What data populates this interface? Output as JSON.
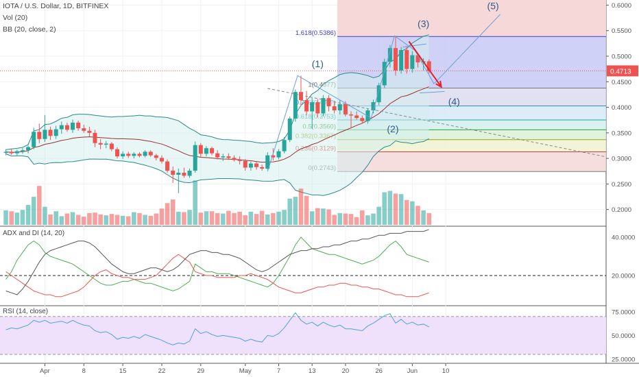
{
  "header": {
    "title": "IOTA / U.S. Dollar, 1D, BITFINEX",
    "vol": "Vol (20)",
    "bb": "BB (20, close, 2)"
  },
  "panes": {
    "adx_label": "ADX and DI (14, 20)",
    "rsi_label": "RSI (14, close)"
  },
  "colors": {
    "up": "#26a69a",
    "down": "#ef5350",
    "bb_band": "#2a8a8a",
    "bb_basis": "#9c2f2f",
    "wave": "#6a9fd8",
    "arrow": "#e0202a",
    "current_price_tag": "#ef5350",
    "adx": "#555555",
    "di_plus": "#4caf50",
    "di_minus": "#ef5350",
    "rsi": "#4aa3df",
    "rsi_zone": "#efe0fb"
  },
  "current_price": {
    "value": 0.4713,
    "label": "0.4713"
  },
  "price_axis": [
    "0.6000",
    "0.5500",
    "0.5000",
    "0.4500",
    "0.4000",
    "0.3500",
    "0.3000",
    "0.2500",
    "0.2000"
  ],
  "adx_axis": [
    "40.0000",
    "20.0000"
  ],
  "rsi_axis": [
    "75.0000",
    "50.0000",
    "25.0000"
  ],
  "time_axis": [
    "Apr",
    "8",
    "15",
    "22",
    "29",
    "May",
    "7",
    "13",
    "20",
    "26",
    "Jun",
    "10"
  ],
  "fib_levels": [
    {
      "ratio": 1.618,
      "price": 0.5386,
      "label": "1.618(0.5386)",
      "color": "#3f3fc8",
      "fill": "#c7c9f5"
    },
    {
      "ratio": 1,
      "price": 0.4377,
      "label": "1(0.4377)",
      "color": "#777777",
      "fill": "#dcdcef"
    },
    {
      "ratio": 0.786,
      "price": 0.4027,
      "label": "0.786(0.4027)",
      "color": "#2b8fd0",
      "fill": "#d6e9f7"
    },
    {
      "ratio": 0.618,
      "price": 0.3753,
      "label": "0.618(0.3753)",
      "color": "#1fa39a",
      "fill": "#d3f0ec"
    },
    {
      "ratio": 0.5,
      "price": 0.356,
      "label": "0.5(0.3560)",
      "color": "#2e9e3a",
      "fill": "#dbf1d6"
    },
    {
      "ratio": 0.382,
      "price": 0.3367,
      "label": "0.382(0.3367)",
      "color": "#9aa31f",
      "fill": "#eef2cf"
    },
    {
      "ratio": 0.236,
      "price": 0.3129,
      "label": "0.236(0.3129)",
      "color": "#d43c3c",
      "fill": "#f6d8d8"
    },
    {
      "ratio": 0,
      "price": 0.2743,
      "label": "0(0.2743)",
      "color": "#777777",
      "fill": "#f6d8d8"
    }
  ],
  "wave_labels": [
    {
      "label": "(1)",
      "day": 56,
      "price": 0.4785
    },
    {
      "label": "(2)",
      "day": 69.5,
      "price": 0.351
    },
    {
      "label": "(3)",
      "day": 75,
      "price": 0.557
    },
    {
      "label": "(4)",
      "day": 80.5,
      "price": 0.405
    },
    {
      "label": "(5)",
      "day": 87.5,
      "price": 0.592
    }
  ],
  "chart_data": {
    "type": "candlestick",
    "title": "IOTA / U.S. Dollar, 1D, BITFINEX",
    "start_date": "2019-03-25",
    "ylim": [
      0.17,
      0.61
    ],
    "candles": [
      {
        "o": 0.311,
        "h": 0.318,
        "l": 0.306,
        "c": 0.313
      },
      {
        "o": 0.313,
        "h": 0.319,
        "l": 0.307,
        "c": 0.31
      },
      {
        "o": 0.31,
        "h": 0.317,
        "l": 0.306,
        "c": 0.314
      },
      {
        "o": 0.314,
        "h": 0.32,
        "l": 0.309,
        "c": 0.316
      },
      {
        "o": 0.316,
        "h": 0.325,
        "l": 0.31,
        "c": 0.322
      },
      {
        "o": 0.322,
        "h": 0.36,
        "l": 0.318,
        "c": 0.352
      },
      {
        "o": 0.352,
        "h": 0.368,
        "l": 0.33,
        "c": 0.338
      },
      {
        "o": 0.338,
        "h": 0.385,
        "l": 0.332,
        "c": 0.356
      },
      {
        "o": 0.356,
        "h": 0.362,
        "l": 0.336,
        "c": 0.344
      },
      {
        "o": 0.344,
        "h": 0.364,
        "l": 0.338,
        "c": 0.357
      },
      {
        "o": 0.357,
        "h": 0.372,
        "l": 0.348,
        "c": 0.365
      },
      {
        "o": 0.365,
        "h": 0.37,
        "l": 0.352,
        "c": 0.356
      },
      {
        "o": 0.356,
        "h": 0.376,
        "l": 0.35,
        "c": 0.37
      },
      {
        "o": 0.37,
        "h": 0.374,
        "l": 0.354,
        "c": 0.359
      },
      {
        "o": 0.359,
        "h": 0.366,
        "l": 0.35,
        "c": 0.354
      },
      {
        "o": 0.354,
        "h": 0.362,
        "l": 0.343,
        "c": 0.35
      },
      {
        "o": 0.35,
        "h": 0.356,
        "l": 0.322,
        "c": 0.33
      },
      {
        "o": 0.33,
        "h": 0.338,
        "l": 0.318,
        "c": 0.327
      },
      {
        "o": 0.327,
        "h": 0.334,
        "l": 0.32,
        "c": 0.329
      },
      {
        "o": 0.329,
        "h": 0.332,
        "l": 0.314,
        "c": 0.318
      },
      {
        "o": 0.318,
        "h": 0.322,
        "l": 0.3,
        "c": 0.304
      },
      {
        "o": 0.304,
        "h": 0.314,
        "l": 0.299,
        "c": 0.309
      },
      {
        "o": 0.309,
        "h": 0.313,
        "l": 0.301,
        "c": 0.305
      },
      {
        "o": 0.305,
        "h": 0.312,
        "l": 0.3,
        "c": 0.309
      },
      {
        "o": 0.309,
        "h": 0.312,
        "l": 0.302,
        "c": 0.305
      },
      {
        "o": 0.305,
        "h": 0.316,
        "l": 0.302,
        "c": 0.313
      },
      {
        "o": 0.313,
        "h": 0.316,
        "l": 0.303,
        "c": 0.306
      },
      {
        "o": 0.306,
        "h": 0.309,
        "l": 0.296,
        "c": 0.301
      },
      {
        "o": 0.301,
        "h": 0.306,
        "l": 0.29,
        "c": 0.294
      },
      {
        "o": 0.294,
        "h": 0.298,
        "l": 0.272,
        "c": 0.276
      },
      {
        "o": 0.276,
        "h": 0.284,
        "l": 0.252,
        "c": 0.268
      },
      {
        "o": 0.268,
        "h": 0.28,
        "l": 0.232,
        "c": 0.272
      },
      {
        "o": 0.272,
        "h": 0.282,
        "l": 0.262,
        "c": 0.266
      },
      {
        "o": 0.266,
        "h": 0.28,
        "l": 0.262,
        "c": 0.276
      },
      {
        "o": 0.276,
        "h": 0.333,
        "l": 0.272,
        "c": 0.326
      },
      {
        "o": 0.326,
        "h": 0.33,
        "l": 0.302,
        "c": 0.309
      },
      {
        "o": 0.309,
        "h": 0.324,
        "l": 0.304,
        "c": 0.32
      },
      {
        "o": 0.32,
        "h": 0.323,
        "l": 0.306,
        "c": 0.31
      },
      {
        "o": 0.31,
        "h": 0.316,
        "l": 0.298,
        "c": 0.302
      },
      {
        "o": 0.302,
        "h": 0.309,
        "l": 0.295,
        "c": 0.304
      },
      {
        "o": 0.304,
        "h": 0.31,
        "l": 0.297,
        "c": 0.301
      },
      {
        "o": 0.301,
        "h": 0.306,
        "l": 0.294,
        "c": 0.297
      },
      {
        "o": 0.297,
        "h": 0.304,
        "l": 0.288,
        "c": 0.295
      },
      {
        "o": 0.295,
        "h": 0.299,
        "l": 0.276,
        "c": 0.282
      },
      {
        "o": 0.282,
        "h": 0.294,
        "l": 0.276,
        "c": 0.29
      },
      {
        "o": 0.29,
        "h": 0.294,
        "l": 0.278,
        "c": 0.283
      },
      {
        "o": 0.283,
        "h": 0.288,
        "l": 0.276,
        "c": 0.28
      },
      {
        "o": 0.28,
        "h": 0.312,
        "l": 0.278,
        "c": 0.306
      },
      {
        "o": 0.306,
        "h": 0.32,
        "l": 0.296,
        "c": 0.302
      },
      {
        "o": 0.302,
        "h": 0.318,
        "l": 0.298,
        "c": 0.314
      },
      {
        "o": 0.314,
        "h": 0.342,
        "l": 0.31,
        "c": 0.336
      },
      {
        "o": 0.336,
        "h": 0.382,
        "l": 0.332,
        "c": 0.378
      },
      {
        "o": 0.378,
        "h": 0.435,
        "l": 0.372,
        "c": 0.43
      },
      {
        "o": 0.43,
        "h": 0.462,
        "l": 0.404,
        "c": 0.414
      },
      {
        "o": 0.414,
        "h": 0.432,
        "l": 0.384,
        "c": 0.392
      },
      {
        "o": 0.392,
        "h": 0.418,
        "l": 0.358,
        "c": 0.41
      },
      {
        "o": 0.41,
        "h": 0.416,
        "l": 0.38,
        "c": 0.388
      },
      {
        "o": 0.388,
        "h": 0.424,
        "l": 0.382,
        "c": 0.418
      },
      {
        "o": 0.418,
        "h": 0.424,
        "l": 0.392,
        "c": 0.402
      },
      {
        "o": 0.402,
        "h": 0.412,
        "l": 0.388,
        "c": 0.394
      },
      {
        "o": 0.394,
        "h": 0.414,
        "l": 0.386,
        "c": 0.406
      },
      {
        "o": 0.406,
        "h": 0.412,
        "l": 0.382,
        "c": 0.386
      },
      {
        "o": 0.386,
        "h": 0.392,
        "l": 0.36,
        "c": 0.384
      },
      {
        "o": 0.384,
        "h": 0.392,
        "l": 0.376,
        "c": 0.379
      },
      {
        "o": 0.379,
        "h": 0.384,
        "l": 0.37,
        "c": 0.373
      },
      {
        "o": 0.373,
        "h": 0.398,
        "l": 0.368,
        "c": 0.394
      },
      {
        "o": 0.394,
        "h": 0.415,
        "l": 0.388,
        "c": 0.41
      },
      {
        "o": 0.41,
        "h": 0.448,
        "l": 0.404,
        "c": 0.443
      },
      {
        "o": 0.443,
        "h": 0.495,
        "l": 0.438,
        "c": 0.489
      },
      {
        "o": 0.489,
        "h": 0.522,
        "l": 0.478,
        "c": 0.516
      },
      {
        "o": 0.516,
        "h": 0.54,
        "l": 0.462,
        "c": 0.472
      },
      {
        "o": 0.472,
        "h": 0.518,
        "l": 0.466,
        "c": 0.512
      },
      {
        "o": 0.512,
        "h": 0.518,
        "l": 0.466,
        "c": 0.475
      },
      {
        "o": 0.475,
        "h": 0.51,
        "l": 0.468,
        "c": 0.502
      },
      {
        "o": 0.502,
        "h": 0.506,
        "l": 0.478,
        "c": 0.488
      },
      {
        "o": 0.488,
        "h": 0.496,
        "l": 0.472,
        "c": 0.49
      },
      {
        "o": 0.49,
        "h": 0.494,
        "l": 0.466,
        "c": 0.471
      }
    ],
    "volume": [
      32,
      30,
      27,
      33,
      44,
      62,
      86,
      40,
      23,
      30,
      19,
      25,
      28,
      22,
      18,
      26,
      27,
      23,
      21,
      24,
      22,
      20,
      19,
      28,
      26,
      22,
      20,
      25,
      36,
      48,
      56,
      29,
      28,
      33,
      98,
      27,
      30,
      30,
      26,
      25,
      31,
      26,
      29,
      21,
      29,
      24,
      31,
      23,
      26,
      29,
      33,
      58,
      62,
      80,
      64,
      30,
      37,
      36,
      34,
      22,
      26,
      25,
      24,
      17,
      32,
      21,
      25,
      40,
      72,
      75,
      69,
      68,
      55,
      52,
      42,
      32,
      26
    ],
    "vol_max": 100,
    "adx": {
      "ylim": [
        5,
        45
      ],
      "adx": [
        12,
        11,
        10,
        13,
        17,
        22,
        27,
        31,
        33,
        34,
        35,
        36,
        37,
        38,
        38,
        37,
        35,
        32,
        29,
        26,
        24,
        22,
        21,
        21,
        22,
        23,
        24,
        24,
        23,
        22,
        23,
        25,
        28,
        31,
        32,
        33,
        33,
        32,
        32,
        31,
        31,
        30,
        29,
        27,
        25,
        23,
        22,
        23,
        25,
        27,
        29,
        31,
        32,
        33,
        33,
        34,
        34,
        35,
        35,
        36,
        36,
        37,
        38,
        38,
        39,
        39,
        40,
        41,
        41,
        42,
        42,
        42,
        43,
        43,
        43,
        43,
        44
      ],
      "di_plus": [
        18,
        22,
        28,
        32,
        36,
        38,
        36,
        32,
        30,
        29,
        28,
        27,
        26,
        24,
        22,
        20,
        18,
        16,
        15,
        15,
        16,
        17,
        17,
        18,
        17,
        16,
        16,
        15,
        14,
        13,
        12,
        13,
        15,
        17,
        26,
        24,
        22,
        22,
        21,
        21,
        21,
        20,
        19,
        18,
        17,
        16,
        15,
        14,
        16,
        20,
        25,
        30,
        36,
        40,
        37,
        34,
        33,
        32,
        31,
        31,
        30,
        29,
        28,
        27,
        26,
        27,
        28,
        30,
        33,
        36,
        38,
        35,
        31,
        30,
        29,
        28,
        27
      ],
      "di_minus": [
        22,
        20,
        18,
        16,
        14,
        12,
        11,
        10,
        10,
        9,
        9,
        10,
        11,
        12,
        14,
        17,
        20,
        22,
        23,
        21,
        20,
        19,
        19,
        18,
        18,
        18,
        19,
        20,
        23,
        26,
        29,
        31,
        29,
        27,
        22,
        21,
        20,
        20,
        19,
        19,
        19,
        19,
        20,
        20,
        21,
        20,
        19,
        18,
        16,
        14,
        13,
        12,
        11,
        11,
        12,
        13,
        14,
        14,
        15,
        15,
        16,
        16,
        15,
        15,
        14,
        14,
        13,
        13,
        12,
        11,
        10,
        10,
        9,
        9,
        9,
        10,
        11
      ]
    },
    "rsi": {
      "ylim": [
        22,
        80
      ],
      "levels": [
        70,
        30
      ],
      "values": [
        56,
        58,
        57,
        59,
        61,
        66,
        64,
        66,
        63,
        64,
        65,
        63,
        66,
        63,
        61,
        60,
        55,
        53,
        54,
        51,
        46,
        48,
        47,
        49,
        47,
        51,
        49,
        47,
        45,
        42,
        40,
        42,
        41,
        44,
        57,
        52,
        54,
        51,
        49,
        50,
        49,
        48,
        47,
        44,
        46,
        44,
        43,
        50,
        49,
        52,
        58,
        66,
        74,
        66,
        62,
        64,
        60,
        64,
        61,
        59,
        61,
        57,
        57,
        56,
        55,
        60,
        63,
        67,
        71,
        73,
        63,
        67,
        62,
        64,
        61,
        62,
        59
      ]
    }
  }
}
